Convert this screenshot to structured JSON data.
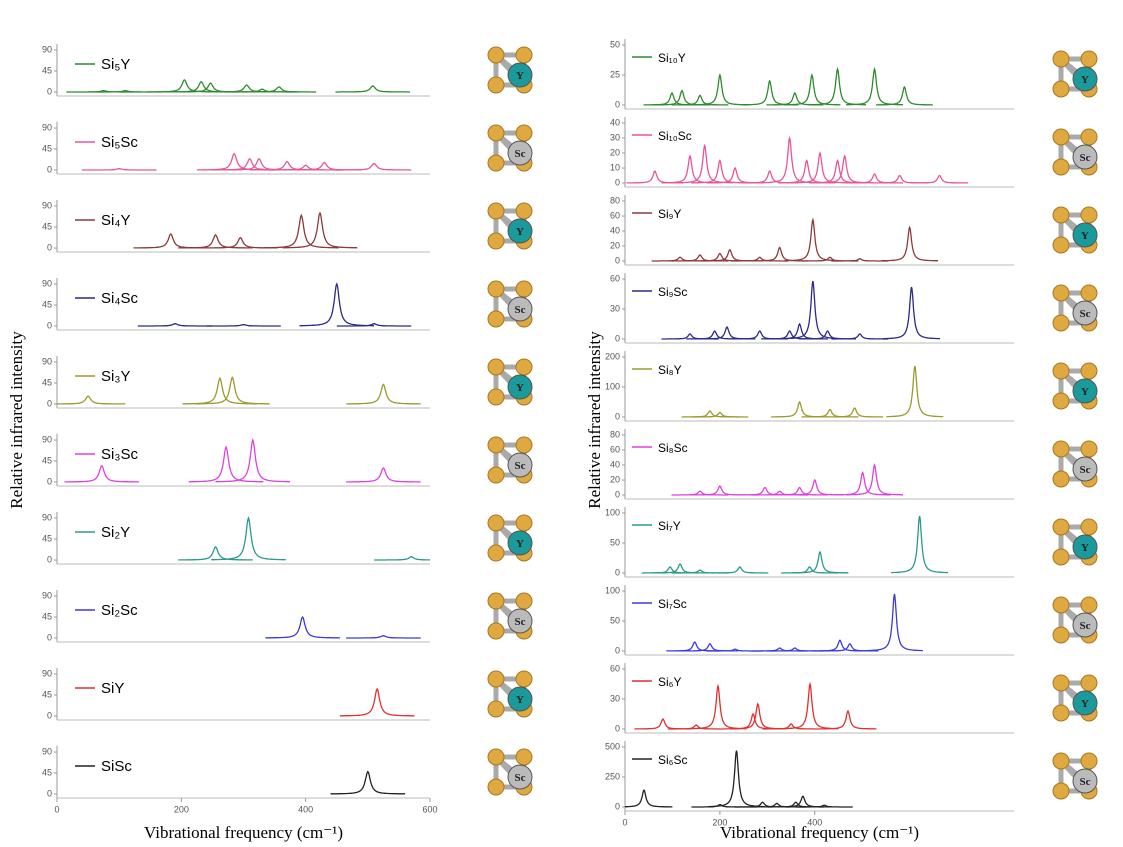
{
  "chart_data": [
    {
      "type": "spectrum",
      "x": [
        75,
        110,
        205,
        232,
        247,
        305,
        330,
        357,
        508
      ],
      "series": [
        {
          "name": "Si₅Y",
          "color": "#2e8b2e",
          "values": [
            3,
            3,
            26,
            22,
            19,
            15,
            6,
            11,
            13
          ]
        }
      ],
      "xlim": [
        0,
        600
      ],
      "ylim": [
        0,
        90
      ],
      "yticks": [
        0,
        45,
        90
      ],
      "atom": "Y",
      "atom_color": "#1a9a9a"
    },
    {
      "type": "spectrum",
      "x": [
        100,
        285,
        310,
        325,
        370,
        400,
        430,
        510
      ],
      "series": [
        {
          "name": "Si₅Sc",
          "color": "#e8559a",
          "values": [
            3,
            35,
            24,
            24,
            18,
            10,
            16,
            14
          ]
        }
      ],
      "xlim": [
        0,
        600
      ],
      "ylim": [
        0,
        90
      ],
      "yticks": [
        0,
        45,
        90
      ],
      "atom": "Sc",
      "atom_color": "#bbbbbb"
    },
    {
      "type": "spectrum",
      "x": [
        183,
        255,
        295,
        393,
        423
      ],
      "series": [
        {
          "name": "Si₄Y",
          "color": "#8b3a3a",
          "values": [
            30,
            28,
            22,
            70,
            75
          ]
        }
      ],
      "xlim": [
        0,
        600
      ],
      "ylim": [
        0,
        90
      ],
      "yticks": [
        0,
        45,
        90
      ],
      "atom": "Y",
      "atom_color": "#1a9a9a"
    },
    {
      "type": "spectrum",
      "x": [
        190,
        300,
        450,
        510
      ],
      "series": [
        {
          "name": "Si₄Sc",
          "color": "#2a2a8a",
          "values": [
            5,
            3,
            90,
            5
          ]
        }
      ],
      "xlim": [
        0,
        600
      ],
      "ylim": [
        0,
        90
      ],
      "yticks": [
        0,
        45,
        90
      ],
      "atom": "Sc",
      "atom_color": "#bbbbbb"
    },
    {
      "type": "spectrum",
      "x": [
        50,
        262,
        282,
        525
      ],
      "series": [
        {
          "name": "Si₃Y",
          "color": "#9a9a30",
          "values": [
            17,
            55,
            57,
            42
          ]
        }
      ],
      "xlim": [
        0,
        600
      ],
      "ylim": [
        0,
        90
      ],
      "yticks": [
        0,
        45,
        90
      ],
      "atom": "Y",
      "atom_color": "#1a9a9a"
    },
    {
      "type": "spectrum",
      "x": [
        72,
        272,
        315,
        525
      ],
      "series": [
        {
          "name": "Si₃Sc",
          "color": "#e040e0",
          "values": [
            35,
            75,
            90,
            30
          ]
        }
      ],
      "xlim": [
        0,
        600
      ],
      "ylim": [
        0,
        90
      ],
      "yticks": [
        0,
        45,
        90
      ],
      "atom": "Sc",
      "atom_color": "#bbbbbb"
    },
    {
      "type": "spectrum",
      "x": [
        255,
        308,
        570
      ],
      "series": [
        {
          "name": "Si₂Y",
          "color": "#2a9a8a",
          "values": [
            28,
            90,
            7
          ]
        }
      ],
      "xlim": [
        0,
        600
      ],
      "ylim": [
        0,
        90
      ],
      "yticks": [
        0,
        45,
        90
      ],
      "ylabel": "Relative infrared intensity",
      "atom": "Y",
      "atom_color": "#1a9a9a"
    },
    {
      "type": "spectrum",
      "x": [
        395,
        525
      ],
      "series": [
        {
          "name": "Si₂Sc",
          "color": "#3a3ae0",
          "values": [
            45,
            5
          ]
        }
      ],
      "xlim": [
        0,
        600
      ],
      "ylim": [
        0,
        90
      ],
      "yticks": [
        0,
        45,
        90
      ],
      "atom": "Sc",
      "atom_color": "#bbbbbb"
    },
    {
      "type": "spectrum",
      "x": [
        515
      ],
      "series": [
        {
          "name": "SiY",
          "color": "#e03030",
          "values": [
            58
          ]
        }
      ],
      "xlim": [
        0,
        600
      ],
      "ylim": [
        0,
        90
      ],
      "yticks": [
        0,
        45,
        90
      ],
      "atom": "Y",
      "atom_color": "#1a9a9a"
    },
    {
      "type": "spectrum",
      "x": [
        500
      ],
      "series": [
        {
          "name": "SiSc",
          "color": "#222222",
          "values": [
            48
          ]
        }
      ],
      "xlim": [
        0,
        600
      ],
      "ylim": [
        0,
        90
      ],
      "yticks": [
        0,
        45,
        90
      ],
      "xticks": [
        0,
        200,
        400,
        600
      ],
      "xlabel": "Vibrational frequency (cm⁻¹)",
      "atom": "Sc",
      "atom_color": "#bbbbbb"
    },
    {
      "type": "spectrum",
      "x": [
        99,
        120,
        158,
        200,
        305,
        358,
        394,
        448,
        526,
        589
      ],
      "series": [
        {
          "name": "Si₁₀Y",
          "color": "#2e8b2e",
          "values": [
            10,
            12,
            8,
            25,
            20,
            10,
            25,
            30,
            30,
            15
          ]
        }
      ],
      "xlim": [
        0,
        820
      ],
      "ylim": [
        0,
        50
      ],
      "yticks": [
        0,
        25,
        50
      ],
      "atom": "Y",
      "atom_color": "#1a9a9a"
    },
    {
      "type": "spectrum",
      "x": [
        63,
        137,
        168,
        200,
        232,
        305,
        347,
        383,
        411,
        448,
        463,
        526,
        579,
        663
      ],
      "series": [
        {
          "name": "Si₁₀Sc",
          "color": "#e8559a",
          "values": [
            8,
            18,
            25,
            15,
            10,
            8,
            30,
            15,
            20,
            15,
            18,
            6,
            5,
            5
          ]
        }
      ],
      "xlim": [
        0,
        820
      ],
      "ylim": [
        0,
        40
      ],
      "yticks": [
        0,
        10,
        20,
        30,
        40
      ],
      "atom": "Sc",
      "atom_color": "#bbbbbb"
    },
    {
      "type": "spectrum",
      "x": [
        116,
        158,
        200,
        221,
        284,
        326,
        396,
        432,
        495,
        600
      ],
      "series": [
        {
          "name": "Si₉Y",
          "color": "#8b3a3a",
          "values": [
            5,
            8,
            10,
            15,
            5,
            18,
            55,
            5,
            3,
            45
          ]
        }
      ],
      "xlim": [
        0,
        820
      ],
      "ylim": [
        0,
        80
      ],
      "yticks": [
        0,
        20,
        40,
        60,
        80
      ],
      "atom": "Y",
      "atom_color": "#1a9a9a"
    },
    {
      "type": "spectrum",
      "x": [
        137,
        189,
        215,
        284,
        347,
        368,
        396,
        427,
        495,
        604
      ],
      "series": [
        {
          "name": "Si₉Sc",
          "color": "#2a2a8a",
          "values": [
            5,
            8,
            12,
            8,
            8,
            15,
            58,
            8,
            5,
            52
          ]
        }
      ],
      "xlim": [
        0,
        820
      ],
      "ylim": [
        0,
        60
      ],
      "yticks": [
        0,
        30,
        60
      ],
      "atom": "Sc",
      "atom_color": "#bbbbbb"
    },
    {
      "type": "spectrum",
      "x": [
        179,
        200,
        368,
        432,
        484,
        611
      ],
      "series": [
        {
          "name": "Si₈Y",
          "color": "#9a9a30",
          "values": [
            20,
            15,
            50,
            25,
            30,
            170
          ]
        }
      ],
      "xlim": [
        0,
        820
      ],
      "ylim": [
        0,
        200
      ],
      "yticks": [
        0,
        100,
        200
      ],
      "atom": "Y",
      "atom_color": "#1a9a9a"
    },
    {
      "type": "spectrum",
      "x": [
        158,
        200,
        295,
        326,
        368,
        400,
        501,
        526
      ],
      "series": [
        {
          "name": "Si₈Sc",
          "color": "#e040e0",
          "values": [
            5,
            12,
            10,
            5,
            10,
            20,
            30,
            40
          ]
        }
      ],
      "xlim": [
        0,
        820
      ],
      "ylim": [
        0,
        80
      ],
      "yticks": [
        0,
        20,
        40,
        60,
        80
      ],
      "atom": "Sc",
      "atom_color": "#bbbbbb"
    },
    {
      "type": "spectrum",
      "x": [
        95,
        116,
        158,
        242,
        389,
        411,
        621
      ],
      "series": [
        {
          "name": "Si₇Y",
          "color": "#2a9a8a",
          "values": [
            10,
            15,
            5,
            10,
            10,
            35,
            95
          ]
        }
      ],
      "xlim": [
        0,
        820
      ],
      "ylim": [
        0,
        100
      ],
      "yticks": [
        0,
        50,
        100
      ],
      "ylabel": "Relative infrared intensity",
      "atom": "Y",
      "atom_color": "#1a9a9a"
    },
    {
      "type": "spectrum",
      "x": [
        147,
        179,
        232,
        326,
        358,
        453,
        474,
        568
      ],
      "series": [
        {
          "name": "Si₇Sc",
          "color": "#3a3ae0",
          "values": [
            15,
            12,
            3,
            5,
            5,
            18,
            12,
            95
          ]
        }
      ],
      "xlim": [
        0,
        820
      ],
      "ylim": [
        0,
        100
      ],
      "yticks": [
        0,
        50,
        100
      ],
      "atom": "Sc",
      "atom_color": "#bbbbbb"
    },
    {
      "type": "spectrum",
      "x": [
        80,
        150,
        196,
        270,
        280,
        350,
        390,
        470
      ],
      "series": [
        {
          "name": "Si₆Y",
          "color": "#e03030",
          "values": [
            10,
            4,
            43,
            15,
            25,
            5,
            45,
            18
          ]
        }
      ],
      "xlim": [
        0,
        820
      ],
      "ylim": [
        0,
        60
      ],
      "yticks": [
        0,
        30,
        60
      ],
      "atom": "Y",
      "atom_color": "#1a9a9a"
    },
    {
      "type": "spectrum",
      "x": [
        40,
        200,
        235,
        290,
        320,
        360,
        375,
        420
      ],
      "series": [
        {
          "name": "Si₆Sc",
          "color": "#222222",
          "values": [
            140,
            20,
            470,
            40,
            30,
            40,
            90,
            15
          ]
        }
      ],
      "xlim": [
        0,
        820
      ],
      "ylim": [
        0,
        500
      ],
      "yticks": [
        0,
        250,
        500
      ],
      "xticks": [
        0,
        200,
        400
      ],
      "xlabel": "Vibrational frequency (cm⁻¹)",
      "atom": "Sc",
      "atom_color": "#bbbbbb"
    }
  ]
}
